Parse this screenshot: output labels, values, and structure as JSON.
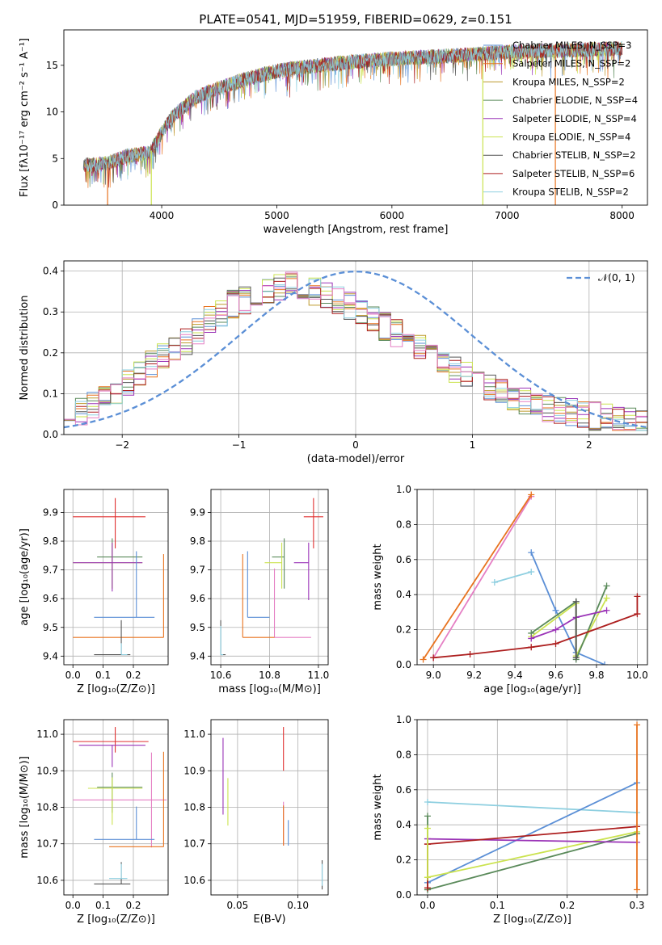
{
  "figure_title": "PLATE=0541, MJD=51959, FIBERID=0629, z=0.151",
  "colors": {
    "c0": "#5b8fd6",
    "c1": "#e8731f",
    "c2": "#bd9a2c",
    "c3": "#5a8a5a",
    "c4": "#9a33b7",
    "c5": "#cbe34f",
    "c6": "#555555",
    "c7": "#ad1f1f",
    "c8": "#8ecfe0",
    "c9": "#e57fc4",
    "c10": "#e03030",
    "normal": "#5b8fd6"
  },
  "chart_data": [
    {
      "id": "spectrum",
      "type": "line",
      "xlabel": "wavelength [Angstrom, rest frame]",
      "ylabel": "Flux [fλ10⁻¹⁷ erg cm⁻² s⁻¹ A⁻¹]",
      "xlim": [
        3150,
        8220
      ],
      "ylim": [
        0,
        18.8
      ],
      "xticks": [
        4000,
        5000,
        6000,
        7000,
        8000
      ],
      "yticks": [
        0,
        5,
        10,
        15
      ],
      "grid": false,
      "legend_position": "top-right",
      "continuum": {
        "x": [
          3300,
          3500,
          3700,
          3900,
          4000,
          4100,
          4300,
          4500,
          4700,
          5000,
          5300,
          5600,
          6000,
          6500,
          7000,
          7500,
          8000
        ],
        "y": [
          4.3,
          4.4,
          5.3,
          5.6,
          7.8,
          9.6,
          11.6,
          12.6,
          13.4,
          14.4,
          14.9,
          15.3,
          15.7,
          16.0,
          16.4,
          16.6,
          16.8
        ]
      },
      "absorption_dips": [
        {
          "x": 3530,
          "y": 0.0
        },
        {
          "x": 3910,
          "y": 0.0
        },
        {
          "x": 6790,
          "y": 0.0
        },
        {
          "x": 7420,
          "y": 0.0
        }
      ],
      "series": [
        {
          "name": "Chabrier MILES, N_SSP=3",
          "color_key": "c0"
        },
        {
          "name": "Salpeter MILES, N_SSP=2",
          "color_key": "c1"
        },
        {
          "name": "Kroupa MILES, N_SSP=2",
          "color_key": "c2"
        },
        {
          "name": "Chabrier ELODIE, N_SSP=4",
          "color_key": "c3"
        },
        {
          "name": "Salpeter ELODIE, N_SSP=4",
          "color_key": "c4"
        },
        {
          "name": "Kroupa ELODIE, N_SSP=4",
          "color_key": "c5"
        },
        {
          "name": "Chabrier STELIB, N_SSP=2",
          "color_key": "c6"
        },
        {
          "name": "Salpeter STELIB, N_SSP=6",
          "color_key": "c7"
        },
        {
          "name": "Kroupa STELIB, N_SSP=2",
          "color_key": "c8"
        }
      ]
    },
    {
      "id": "residuals",
      "type": "step",
      "xlabel": "(data-model)/error",
      "ylabel": "Normed distribution",
      "xlim": [
        -2.5,
        2.5
      ],
      "ylim": [
        0,
        0.425
      ],
      "xticks": [
        -2,
        -1,
        0,
        1,
        2
      ],
      "yticks": [
        0.0,
        0.1,
        0.2,
        0.3,
        0.4
      ],
      "grid": true,
      "legend_position": "top-right",
      "bin_edges_range": [
        -2.5,
        2.5
      ],
      "n_bins": 50,
      "envelope": [
        0.05,
        0.055,
        0.07,
        0.09,
        0.11,
        0.13,
        0.15,
        0.17,
        0.19,
        0.21,
        0.23,
        0.255,
        0.28,
        0.3,
        0.32,
        0.33,
        0.345,
        0.355,
        0.36,
        0.365,
        0.355,
        0.35,
        0.34,
        0.33,
        0.315,
        0.3,
        0.285,
        0.265,
        0.25,
        0.23,
        0.21,
        0.195,
        0.175,
        0.16,
        0.145,
        0.13,
        0.115,
        0.1,
        0.09,
        0.08,
        0.07,
        0.065,
        0.06,
        0.055,
        0.05,
        0.045,
        0.04,
        0.035,
        0.03,
        0.03
      ],
      "normal_curve": {
        "name": "𝒩(0, 1)",
        "mu": 0,
        "sigma": 1,
        "color_key": "normal"
      },
      "series_color_keys": [
        "c0",
        "c1",
        "c2",
        "c3",
        "c4",
        "c5",
        "c6",
        "c7",
        "c8",
        "c9"
      ]
    },
    {
      "id": "age_vs_Z",
      "type": "errorbar",
      "xlabel": "Z [log₁₀(Z/Z⊙)]",
      "ylabel": "age  [log₁₀(age/yr)]",
      "xlim": [
        -0.03,
        0.315
      ],
      "ylim": [
        9.37,
        9.98
      ],
      "xticks": [
        0.0,
        0.1,
        0.2
      ],
      "yticks": [
        9.4,
        9.5,
        9.6,
        9.7,
        9.8,
        9.9
      ],
      "grid": true,
      "points": [
        {
          "x": 0.14,
          "y": 9.885,
          "xerr": [
            0.14,
            0.1
          ],
          "yerr": [
            0.11,
            0.065
          ],
          "color_key": "c10"
        },
        {
          "x": 0.13,
          "y": 9.745,
          "xerr": [
            0.05,
            0.1
          ],
          "yerr": [
            0.11,
            0.065
          ],
          "color_key": "c3"
        },
        {
          "x": 0.13,
          "y": 9.725,
          "xerr": [
            0.13,
            0.1
          ],
          "yerr": [
            0.09,
            0.07
          ],
          "color_key": "c5"
        },
        {
          "x": 0.13,
          "y": 9.725,
          "xerr": [
            0.13,
            0.1
          ],
          "yerr": [
            0.1,
            0.07
          ],
          "color_key": "c4"
        },
        {
          "x": 0.21,
          "y": 9.535,
          "xerr": [
            0.14,
            0.06
          ],
          "yerr": [
            0.0,
            0.23
          ],
          "color_key": "c0"
        },
        {
          "x": 0.3,
          "y": 9.465,
          "xerr": [
            0.3,
            0.0
          ],
          "yerr": [
            0.0,
            0.29
          ],
          "color_key": "c1"
        },
        {
          "x": 0.16,
          "y": 9.405,
          "xerr": [
            0.09,
            0.03
          ],
          "yerr": [
            0.0,
            0.12
          ],
          "color_key": "c6"
        },
        {
          "x": 0.16,
          "y": 9.405,
          "xerr": [
            0.0,
            0.02
          ],
          "yerr": [
            0.0,
            0.04
          ],
          "color_key": "c8"
        }
      ]
    },
    {
      "id": "age_vs_mass",
      "type": "errorbar",
      "xlabel": "mass [log₁₀(M/M⊙)]",
      "ylabel": "",
      "xlim": [
        10.56,
        11.04
      ],
      "ylim": [
        9.37,
        9.98
      ],
      "xticks": [
        10.6,
        10.8,
        11.0
      ],
      "yticks": [
        9.4,
        9.5,
        9.6,
        9.7,
        9.8,
        9.9
      ],
      "grid": true,
      "points": [
        {
          "x": 10.98,
          "y": 9.885,
          "xerr": [
            0.04,
            0.04
          ],
          "yerr": [
            0.11,
            0.065
          ],
          "color_key": "c10"
        },
        {
          "x": 10.96,
          "y": 9.725,
          "xerr": [
            0.06,
            0.0
          ],
          "yerr": [
            0.13,
            0.07
          ],
          "color_key": "c4"
        },
        {
          "x": 10.86,
          "y": 9.745,
          "xerr": [
            0.05,
            0.0
          ],
          "yerr": [
            0.11,
            0.065
          ],
          "color_key": "c3"
        },
        {
          "x": 10.85,
          "y": 9.725,
          "xerr": [
            0.07,
            0.0
          ],
          "yerr": [
            0.09,
            0.07
          ],
          "color_key": "c5"
        },
        {
          "x": 10.82,
          "y": 9.465,
          "xerr": [
            0.0,
            0.15
          ],
          "yerr": [
            0.0,
            0.24
          ],
          "color_key": "c9"
        },
        {
          "x": 10.71,
          "y": 9.535,
          "xerr": [
            0.0,
            0.09
          ],
          "yerr": [
            0.0,
            0.23
          ],
          "color_key": "c0"
        },
        {
          "x": 10.69,
          "y": 9.465,
          "xerr": [
            0.0,
            0.13
          ],
          "yerr": [
            0.0,
            0.29
          ],
          "color_key": "c1"
        },
        {
          "x": 10.6,
          "y": 9.405,
          "xerr": [
            0.0,
            0.02
          ],
          "yerr": [
            0.0,
            0.12
          ],
          "color_key": "c6"
        },
        {
          "x": 10.6,
          "y": 9.405,
          "xerr": [
            0.0,
            0.01
          ],
          "yerr": [
            0.0,
            0.1
          ],
          "color_key": "c8"
        }
      ]
    },
    {
      "id": "weight_vs_age",
      "type": "line",
      "xlabel": "age  [log₁₀(age/yr)]",
      "ylabel": "mass weight",
      "xlim": [
        8.92,
        10.05
      ],
      "ylim": [
        0,
        1.0
      ],
      "xticks": [
        9.0,
        9.2,
        9.4,
        9.6,
        9.8,
        10.0
      ],
      "yticks": [
        0.0,
        0.2,
        0.4,
        0.6,
        0.8,
        1.0
      ],
      "grid": true,
      "series": [
        {
          "color_key": "c9",
          "x": [
            9.0,
            9.48
          ],
          "y": [
            0.04,
            0.96
          ]
        },
        {
          "color_key": "c1",
          "x": [
            8.95,
            9.48
          ],
          "y": [
            0.03,
            0.97
          ]
        },
        {
          "color_key": "c8",
          "x": [
            9.3,
            9.48
          ],
          "y": [
            0.47,
            0.53
          ]
        },
        {
          "color_key": "c0",
          "x": [
            9.48,
            9.6,
            9.7,
            9.84
          ],
          "y": [
            0.64,
            0.31,
            0.07,
            0.0
          ]
        },
        {
          "color_key": "c5",
          "x": [
            9.48,
            9.7,
            9.7,
            9.85
          ],
          "y": [
            0.16,
            0.35,
            0.05,
            0.38
          ]
        },
        {
          "color_key": "c3",
          "x": [
            9.48,
            9.7,
            9.7,
            9.85
          ],
          "y": [
            0.18,
            0.36,
            0.03,
            0.45
          ]
        },
        {
          "color_key": "c4",
          "x": [
            9.48,
            9.6,
            9.7,
            9.85
          ],
          "y": [
            0.15,
            0.2,
            0.27,
            0.31
          ]
        },
        {
          "color_key": "c7",
          "x": [
            9.0,
            9.18,
            9.48,
            9.6,
            10.0,
            10.0
          ],
          "y": [
            0.04,
            0.06,
            0.1,
            0.12,
            0.29,
            0.39
          ]
        },
        {
          "color_key": "c6",
          "x": [
            9.7,
            9.7
          ],
          "y": [
            0.04,
            0.36
          ]
        }
      ]
    },
    {
      "id": "mass_vs_Z",
      "type": "errorbar",
      "xlabel": "Z [log₁₀(Z/Z⊙)]",
      "ylabel": "mass [log₁₀(M/M⊙)]",
      "xlim": [
        -0.03,
        0.315
      ],
      "ylim": [
        10.56,
        11.04
      ],
      "xticks": [
        0.0,
        0.1,
        0.2
      ],
      "yticks": [
        10.6,
        10.7,
        10.8,
        10.9,
        11.0
      ],
      "grid": true,
      "points": [
        {
          "x": 0.14,
          "y": 10.98,
          "xerr": [
            0.14,
            0.11
          ],
          "yerr": [
            0.03,
            0.04
          ],
          "color_key": "c10"
        },
        {
          "x": 0.13,
          "y": 10.97,
          "xerr": [
            0.11,
            0.11
          ],
          "yerr": [
            0.06,
            0.0
          ],
          "color_key": "c4"
        },
        {
          "x": 0.13,
          "y": 10.855,
          "xerr": [
            0.05,
            0.1
          ],
          "yerr": [
            0.07,
            0.04
          ],
          "color_key": "c3"
        },
        {
          "x": 0.13,
          "y": 10.852,
          "xerr": [
            0.08,
            0.1
          ],
          "yerr": [
            0.1,
            0.03
          ],
          "color_key": "c5"
        },
        {
          "x": 0.26,
          "y": 10.82,
          "xerr": [
            0.26,
            0.05
          ],
          "yerr": [
            0.13,
            0.13
          ],
          "color_key": "c9"
        },
        {
          "x": 0.21,
          "y": 10.712,
          "xerr": [
            0.14,
            0.06
          ],
          "yerr": [
            0.0,
            0.09
          ],
          "color_key": "c0"
        },
        {
          "x": 0.3,
          "y": 10.692,
          "xerr": [
            0.18,
            0.0
          ],
          "yerr": [
            0.0,
            0.26
          ],
          "color_key": "c1"
        },
        {
          "x": 0.16,
          "y": 10.59,
          "xerr": [
            0.09,
            0.03
          ],
          "yerr": [
            0.0,
            0.06
          ],
          "color_key": "c6"
        },
        {
          "x": 0.16,
          "y": 10.605,
          "xerr": [
            0.04,
            0.02
          ],
          "yerr": [
            0.0,
            0.04
          ],
          "color_key": "c8"
        }
      ]
    },
    {
      "id": "mass_vs_EBV",
      "type": "errorbar",
      "xlabel": "E(B-V)",
      "ylabel": "",
      "xlim": [
        0.028,
        0.125
      ],
      "ylim": [
        10.56,
        11.04
      ],
      "xticks": [
        0.05,
        0.1
      ],
      "yticks": [
        10.6,
        10.7,
        10.8,
        10.9,
        11.0
      ],
      "grid": true,
      "points": [
        {
          "x": 0.088,
          "y": 10.94,
          "xerr": [
            0,
            0
          ],
          "yerr": [
            0.04,
            0.08
          ],
          "color_key": "c10"
        },
        {
          "x": 0.038,
          "y": 10.9,
          "xerr": [
            0,
            0
          ],
          "yerr": [
            0.12,
            0.09
          ],
          "color_key": "c4"
        },
        {
          "x": 0.042,
          "y": 10.83,
          "xerr": [
            0,
            0
          ],
          "yerr": [
            0.08,
            0.05
          ],
          "color_key": "c5"
        },
        {
          "x": 0.088,
          "y": 10.755,
          "xerr": [
            0,
            0
          ],
          "yerr": [
            0.06,
            0.06
          ],
          "color_key": "c9"
        },
        {
          "x": 0.088,
          "y": 10.745,
          "xerr": [
            0,
            0
          ],
          "yerr": [
            0.05,
            0.06
          ],
          "color_key": "c1"
        },
        {
          "x": 0.092,
          "y": 10.725,
          "xerr": [
            0,
            0
          ],
          "yerr": [
            0.03,
            0.04
          ],
          "color_key": "c0"
        },
        {
          "x": 0.12,
          "y": 10.615,
          "xerr": [
            0,
            0
          ],
          "yerr": [
            0.04,
            0.04
          ],
          "color_key": "c6"
        },
        {
          "x": 0.12,
          "y": 10.615,
          "xerr": [
            0,
            0
          ],
          "yerr": [
            0.03,
            0.03
          ],
          "color_key": "c8"
        }
      ]
    },
    {
      "id": "weight_vs_Z",
      "type": "line",
      "xlabel": "Z [log₁₀(Z/Z⊙)]",
      "ylabel": "mass weight",
      "xlim": [
        -0.015,
        0.315
      ],
      "ylim": [
        0,
        1.0
      ],
      "xticks": [
        0.0,
        0.1,
        0.2,
        0.3
      ],
      "yticks": [
        0.0,
        0.2,
        0.4,
        0.6,
        0.8,
        1.0
      ],
      "grid": true,
      "series": [
        {
          "color_key": "c8",
          "x": [
            0.0,
            0.3
          ],
          "y": [
            0.53,
            0.47
          ]
        },
        {
          "color_key": "c0",
          "x": [
            0.0,
            0.3
          ],
          "y": [
            0.07,
            0.64
          ]
        },
        {
          "color_key": "c5",
          "x": [
            0.0,
            0.3
          ],
          "y": [
            0.1,
            0.36
          ]
        },
        {
          "color_key": "c3",
          "x": [
            0.0,
            0.3
          ],
          "y": [
            0.03,
            0.35
          ]
        },
        {
          "color_key": "c4",
          "x": [
            0.0,
            0.3
          ],
          "y": [
            0.32,
            0.3
          ]
        },
        {
          "color_key": "c7",
          "x": [
            0.0,
            0.3
          ],
          "y": [
            0.29,
            0.39
          ]
        },
        {
          "color_key": "c1",
          "x": [
            0.3,
            0.3
          ],
          "y": [
            0.03,
            0.97
          ]
        },
        {
          "color_key": "c3",
          "x": [
            0.0,
            0.0
          ],
          "y": [
            0.03,
            0.45
          ]
        },
        {
          "color_key": "c7",
          "x": [
            0.0,
            0.0
          ],
          "y": [
            0.04,
            0.29
          ]
        },
        {
          "color_key": "c5",
          "x": [
            0.0,
            0.0
          ],
          "y": [
            0.1,
            0.38
          ]
        }
      ]
    }
  ]
}
